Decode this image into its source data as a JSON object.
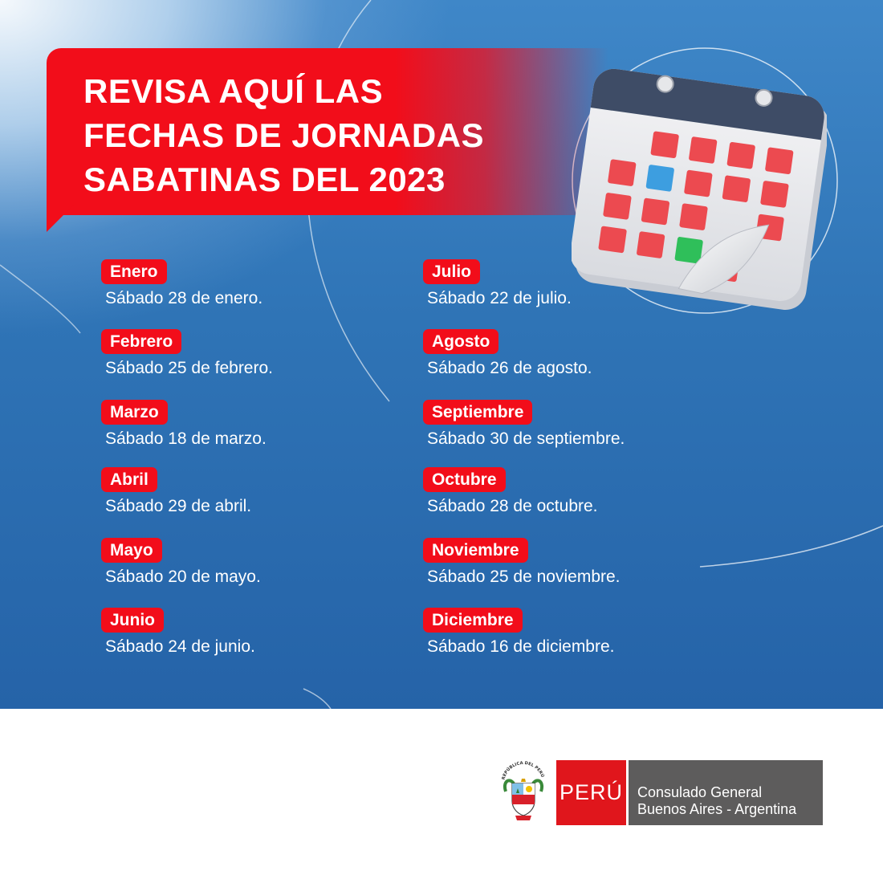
{
  "headline": {
    "line1": "REVISA AQUÍ LAS",
    "line2": "FECHAS DE JORNADAS",
    "line3": "SABATINAS DEL 2023"
  },
  "months_left": [
    {
      "month": "Enero",
      "date": "Sábado 28 de enero."
    },
    {
      "month": "Febrero",
      "date": "Sábado 25 de febrero."
    },
    {
      "month": "Marzo",
      "date": "Sábado 18 de marzo."
    },
    {
      "month": "Abril",
      "date": "Sábado 29 de abril."
    },
    {
      "month": "Mayo",
      "date": "Sábado 20 de mayo."
    },
    {
      "month": "Junio",
      "date": "Sábado 24 de junio."
    }
  ],
  "months_right": [
    {
      "month": "Julio",
      "date": "Sábado 22 de julio."
    },
    {
      "month": "Agosto",
      "date": "Sábado 26 de agosto."
    },
    {
      "month": "Septiembre",
      "date": "Sábado 30 de septiembre."
    },
    {
      "month": "Octubre",
      "date": "Sábado 28 de octubre."
    },
    {
      "month": "Noviembre",
      "date": "Sábado 25 de noviembre."
    },
    {
      "month": "Diciembre",
      "date": "Sábado 16 de diciembre."
    }
  ],
  "footer": {
    "seal_text": "REPÚBLICA DEL PERÚ",
    "brand_name": "PERÚ",
    "institution_line1": "Consulado General",
    "institution_line2": "Buenos Aires - Argentina"
  },
  "colors": {
    "accent_red": "#f20d1a",
    "brand_grey": "#5d5c5c",
    "background_blue": "#2f74b6"
  },
  "icons": [
    "calendar-icon",
    "coat-of-arms-icon"
  ]
}
